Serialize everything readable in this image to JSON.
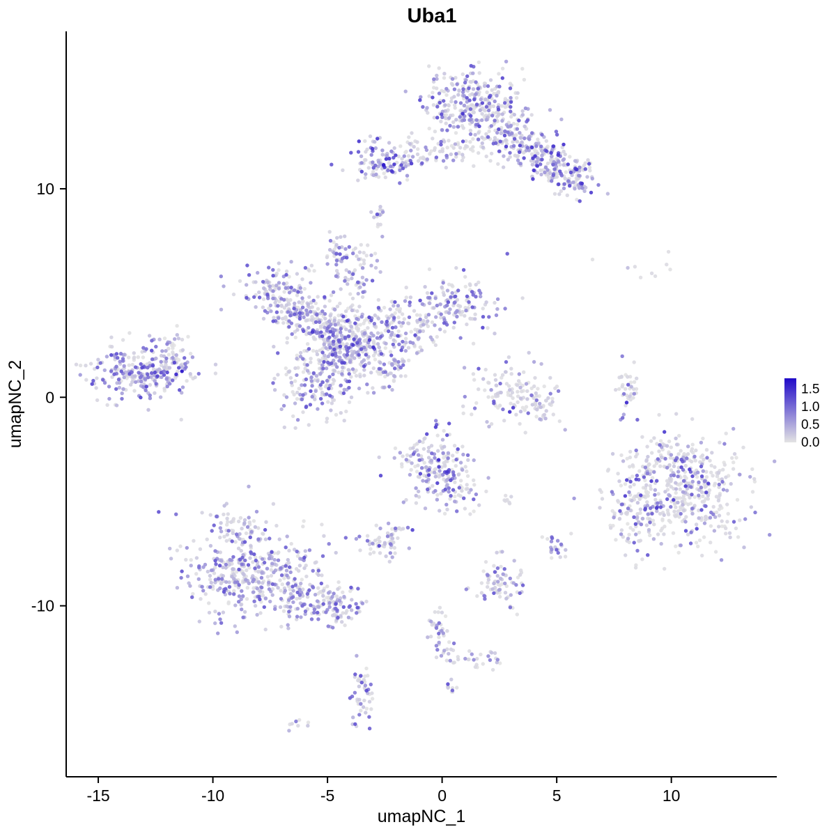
{
  "chart_data": {
    "type": "scatter",
    "title": "Uba1",
    "xlabel": "umapNC_1",
    "ylabel": "umapNC_2",
    "xlim": [
      -16.4,
      14.6
    ],
    "ylim": [
      -18.2,
      17.55
    ],
    "x_ticks": [
      -15,
      -10,
      -5,
      0,
      5,
      10
    ],
    "y_ticks": [
      10,
      0,
      -10
    ],
    "grid": false,
    "legend": {
      "position": "right",
      "ticks": [
        1.5,
        1.0,
        0.5,
        0.0
      ],
      "vmax": 1.8
    },
    "colors": {
      "low": "#E3E3E3",
      "high": "#200AC8"
    },
    "point_radius": 2.7,
    "seed": 42,
    "clusters": [
      {
        "id": "A1",
        "cx": 1.2,
        "cy": 14.2,
        "sx": 1.15,
        "sy": 0.85,
        "rot": 0,
        "n": 230,
        "p0": 0.45,
        "emax": 1.35
      },
      {
        "id": "A2",
        "cx": 2.3,
        "cy": 12.9,
        "sx": 1.0,
        "sy": 0.75,
        "rot": -20,
        "n": 170,
        "p0": 0.45,
        "emax": 1.35
      },
      {
        "id": "A3",
        "cx": 4.2,
        "cy": 11.7,
        "sx": 1.05,
        "sy": 0.55,
        "rot": -25,
        "n": 170,
        "p0": 0.4,
        "emax": 1.5
      },
      {
        "id": "A4",
        "cx": 5.6,
        "cy": 10.6,
        "sx": 0.55,
        "sy": 0.45,
        "rot": -30,
        "n": 90,
        "p0": 0.35,
        "emax": 1.5
      },
      {
        "id": "A5",
        "cx": 0.3,
        "cy": 11.9,
        "sx": 0.9,
        "sy": 0.45,
        "rot": 0,
        "n": 45,
        "p0": 0.55,
        "emax": 1.0
      },
      {
        "id": "B1",
        "cx": -2.6,
        "cy": 11.3,
        "sx": 0.75,
        "sy": 0.5,
        "rot": 0,
        "n": 100,
        "p0": 0.35,
        "emax": 1.5
      },
      {
        "id": "B2",
        "cx": -1.2,
        "cy": 11.5,
        "sx": 0.6,
        "sy": 0.25,
        "rot": 0,
        "n": 30,
        "p0": 0.5,
        "emax": 1.2
      },
      {
        "id": "C",
        "cx": -2.8,
        "cy": 8.7,
        "sx": 0.18,
        "sy": 0.32,
        "rot": 0,
        "n": 14,
        "p0": 0.3,
        "emax": 1.3
      },
      {
        "id": "D",
        "cx": -4.6,
        "cy": 7.0,
        "sx": 0.25,
        "sy": 0.45,
        "rot": 0,
        "n": 32,
        "p0": 0.3,
        "emax": 1.3
      },
      {
        "id": "E1",
        "cx": -7.2,
        "cy": 5.2,
        "sx": 0.85,
        "sy": 0.5,
        "rot": 15,
        "n": 90,
        "p0": 0.4,
        "emax": 1.25
      },
      {
        "id": "E2",
        "cx": -6.5,
        "cy": 4.2,
        "sx": 0.7,
        "sy": 0.55,
        "rot": 0,
        "n": 90,
        "p0": 0.4,
        "emax": 1.25
      },
      {
        "id": "E3",
        "cx": -5.2,
        "cy": 3.6,
        "sx": 0.9,
        "sy": 0.55,
        "rot": -20,
        "n": 130,
        "p0": 0.35,
        "emax": 1.3
      },
      {
        "id": "E4",
        "cx": -4.0,
        "cy": 2.6,
        "sx": 0.85,
        "sy": 0.8,
        "rot": 0,
        "n": 230,
        "p0": 0.3,
        "emax": 1.45
      },
      {
        "id": "E5",
        "cx": -5.3,
        "cy": 0.9,
        "sx": 0.95,
        "sy": 0.9,
        "rot": 0,
        "n": 210,
        "p0": 0.35,
        "emax": 1.3
      },
      {
        "id": "E6",
        "cx": -1.9,
        "cy": 3.3,
        "sx": 1.0,
        "sy": 0.65,
        "rot": 0,
        "n": 130,
        "p0": 0.4,
        "emax": 1.3
      },
      {
        "id": "E7",
        "cx": 0.6,
        "cy": 4.4,
        "sx": 1.05,
        "sy": 0.7,
        "rot": 0,
        "n": 140,
        "p0": 0.4,
        "emax": 1.35
      },
      {
        "id": "E8",
        "cx": -3.8,
        "cy": 5.8,
        "sx": 0.5,
        "sy": 0.8,
        "rot": 0,
        "n": 60,
        "p0": 0.4,
        "emax": 1.2
      },
      {
        "id": "E9",
        "cx": -2.1,
        "cy": 1.5,
        "sx": 0.55,
        "sy": 0.4,
        "rot": 40,
        "n": 55,
        "p0": 0.4,
        "emax": 1.2
      },
      {
        "id": "F1",
        "cx": -13.1,
        "cy": 1.2,
        "sx": 1.2,
        "sy": 0.75,
        "rot": 10,
        "n": 270,
        "p0": 0.3,
        "emax": 1.35
      },
      {
        "id": "F2",
        "cx": -11.6,
        "cy": 2.1,
        "sx": 0.45,
        "sy": 0.5,
        "rot": 0,
        "n": 25,
        "p0": 0.5,
        "emax": 1.0
      },
      {
        "id": "G1",
        "cx": 3.0,
        "cy": 0.2,
        "sx": 0.85,
        "sy": 0.75,
        "rot": 0,
        "n": 110,
        "p0": 0.55,
        "emax": 1.2
      },
      {
        "id": "G2",
        "cx": 4.3,
        "cy": -0.4,
        "sx": 0.4,
        "sy": 0.45,
        "rot": 0,
        "n": 30,
        "p0": 0.55,
        "emax": 1.2
      },
      {
        "id": "H",
        "cx": 8.1,
        "cy": 0.3,
        "sx": 0.25,
        "sy": 0.6,
        "rot": 0,
        "n": 35,
        "p0": 0.5,
        "emax": 1.4
      },
      {
        "id": "I",
        "cx": 8.7,
        "cy": 6.4,
        "sx": 1.1,
        "sy": 0.35,
        "rot": 0,
        "n": 9,
        "p0": 0.9,
        "emax": 0.6
      },
      {
        "id": "J1",
        "cx": 10.6,
        "cy": -4.6,
        "sx": 1.5,
        "sy": 1.3,
        "rot": 0,
        "n": 430,
        "p0": 0.6,
        "emax": 1.45
      },
      {
        "id": "J2",
        "cx": 8.4,
        "cy": -5.6,
        "sx": 0.6,
        "sy": 0.85,
        "rot": 0,
        "n": 70,
        "p0": 0.6,
        "emax": 1.3
      },
      {
        "id": "J3",
        "cx": 9.7,
        "cy": -2.9,
        "sx": 0.85,
        "sy": 0.5,
        "rot": 0,
        "n": 60,
        "p0": 0.6,
        "emax": 1.3
      },
      {
        "id": "K1",
        "cx": -0.3,
        "cy": -3.3,
        "sx": 0.8,
        "sy": 0.85,
        "rot": 0,
        "n": 180,
        "p0": 0.4,
        "emax": 1.45
      },
      {
        "id": "K2",
        "cx": 0.8,
        "cy": -4.7,
        "sx": 0.5,
        "sy": 0.55,
        "rot": 0,
        "n": 40,
        "p0": 0.45,
        "emax": 1.2
      },
      {
        "id": "K3",
        "cx": 2.8,
        "cy": -4.9,
        "sx": 0.2,
        "sy": 0.15,
        "rot": 0,
        "n": 8,
        "p0": 0.8,
        "emax": 0.6
      },
      {
        "id": "L1",
        "cx": -8.2,
        "cy": -8.3,
        "sx": 1.45,
        "sy": 1.15,
        "rot": 0,
        "n": 400,
        "p0": 0.32,
        "emax": 1.25
      },
      {
        "id": "L2",
        "cx": -5.9,
        "cy": -9.6,
        "sx": 0.95,
        "sy": 0.6,
        "rot": -15,
        "n": 110,
        "p0": 0.35,
        "emax": 1.25
      },
      {
        "id": "L3",
        "cx": -4.4,
        "cy": -10.2,
        "sx": 0.5,
        "sy": 0.4,
        "rot": 0,
        "n": 50,
        "p0": 0.35,
        "emax": 1.25
      },
      {
        "id": "L4",
        "cx": -9.0,
        "cy": -6.3,
        "sx": 0.55,
        "sy": 0.5,
        "rot": 0,
        "n": 50,
        "p0": 0.4,
        "emax": 1.1
      },
      {
        "id": "M",
        "cx": -2.3,
        "cy": -6.8,
        "sx": 0.55,
        "sy": 0.4,
        "rot": 0,
        "n": 60,
        "p0": 0.5,
        "emax": 1.4
      },
      {
        "id": "N",
        "cx": 5.0,
        "cy": -7.1,
        "sx": 0.25,
        "sy": 0.38,
        "rot": 0,
        "n": 20,
        "p0": 0.3,
        "emax": 1.2
      },
      {
        "id": "O",
        "cx": 2.4,
        "cy": -8.9,
        "sx": 0.55,
        "sy": 0.6,
        "rot": 0,
        "n": 75,
        "p0": 0.5,
        "emax": 1.3
      },
      {
        "id": "P1",
        "cx": -0.2,
        "cy": -11.0,
        "sx": 0.28,
        "sy": 0.75,
        "rot": 0,
        "n": 30,
        "p0": 0.5,
        "emax": 1.2
      },
      {
        "id": "P2",
        "cx": 0.3,
        "cy": -12.3,
        "sx": 0.3,
        "sy": 0.3,
        "rot": 0,
        "n": 15,
        "p0": 0.5,
        "emax": 1.1
      },
      {
        "id": "Q1",
        "cx": 1.5,
        "cy": -12.4,
        "sx": 0.3,
        "sy": 0.25,
        "rot": 0,
        "n": 12,
        "p0": 0.6,
        "emax": 1.0
      },
      {
        "id": "Q2",
        "cx": 2.4,
        "cy": -12.5,
        "sx": 0.22,
        "sy": 0.2,
        "rot": 0,
        "n": 10,
        "p0": 0.5,
        "emax": 1.2
      },
      {
        "id": "R",
        "cx": -3.4,
        "cy": -14.2,
        "sx": 0.26,
        "sy": 0.75,
        "rot": 0,
        "n": 48,
        "p0": 0.4,
        "emax": 1.3
      },
      {
        "id": "S",
        "cx": 0.4,
        "cy": -13.8,
        "sx": 0.18,
        "sy": 0.22,
        "rot": 0,
        "n": 10,
        "p0": 0.3,
        "emax": 1.3
      },
      {
        "id": "T",
        "cx": -6.3,
        "cy": -15.7,
        "sx": 0.28,
        "sy": 0.15,
        "rot": 0,
        "n": 8,
        "p0": 0.4,
        "emax": 1.0
      }
    ],
    "highlight_points": [
      [
        -11.35,
        1.25,
        1.9
      ],
      [
        -11.6,
        1.1,
        1.6
      ],
      [
        -2.55,
        11.15,
        1.7
      ],
      [
        -0.15,
        -3.0,
        1.6
      ],
      [
        8.05,
        -0.25,
        1.6
      ],
      [
        2.95,
        -0.7,
        1.5
      ],
      [
        3.1,
        -0.5,
        1.45
      ],
      [
        -3.0,
        2.4,
        1.55
      ],
      [
        0.9,
        13.6,
        1.5
      ]
    ]
  }
}
